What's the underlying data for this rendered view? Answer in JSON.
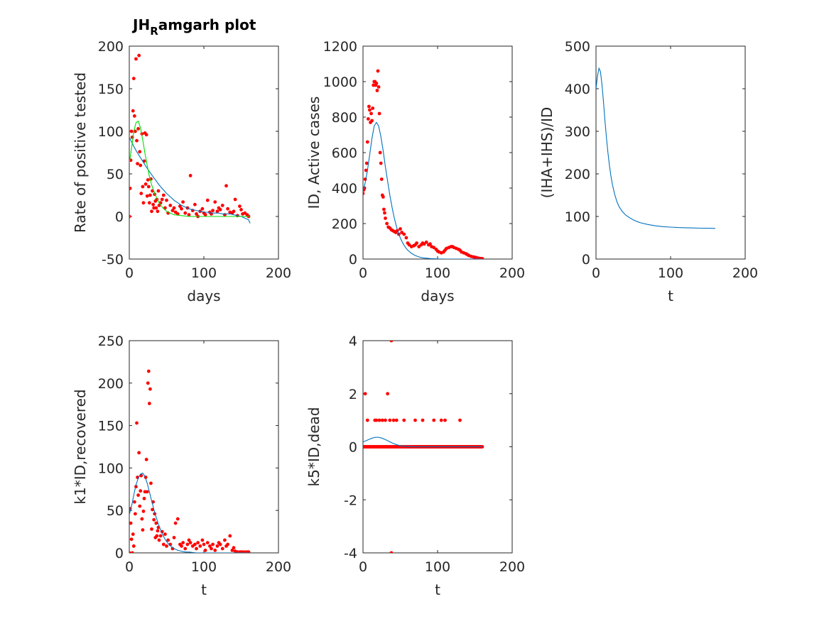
{
  "figure": {
    "title_main": "JH",
    "title_sub": "R",
    "title_rest": "amgarh plot"
  },
  "colors": {
    "fit": "#0072BD",
    "fit2": "#00E000",
    "data": "#FF0000",
    "axes": "#262626"
  },
  "chart_data": [
    {
      "type": "scatter",
      "xlabel": "days",
      "ylabel": "Rate of positive tested",
      "xlim": [
        0,
        200
      ],
      "ylim": [
        -50,
        200
      ],
      "xticks": [
        0,
        100,
        200
      ],
      "yticks": [
        -50,
        0,
        50,
        100,
        150,
        200
      ],
      "series": [
        {
          "kind": "points",
          "x": [
            0,
            1,
            2,
            3,
            4,
            5,
            6,
            7,
            8,
            9,
            10,
            11,
            12,
            13,
            14,
            15,
            16,
            17,
            18,
            19,
            20,
            21,
            22,
            23,
            24,
            25,
            26,
            27,
            28,
            29,
            30,
            31,
            32,
            33,
            34,
            35,
            36,
            37,
            38,
            39,
            40,
            42,
            44,
            46,
            48,
            50,
            52,
            55,
            58,
            60,
            62,
            65,
            68,
            70,
            72,
            75,
            78,
            80,
            82,
            85,
            88,
            90,
            92,
            95,
            98,
            100,
            102,
            105,
            108,
            110,
            112,
            115,
            118,
            120,
            122,
            125,
            128,
            130,
            132,
            135,
            138,
            140,
            142,
            145,
            148,
            150,
            152,
            155,
            158,
            160
          ],
          "y": [
            0,
            33,
            66,
            100,
            93,
            124,
            162,
            118,
            100,
            185,
            89,
            62,
            103,
            189,
            76,
            60,
            27,
            97,
            35,
            16,
            65,
            98,
            38,
            96,
            24,
            43,
            35,
            16,
            25,
            44,
            6,
            30,
            14,
            10,
            26,
            18,
            10,
            20,
            6,
            30,
            13,
            16,
            20,
            25,
            10,
            19,
            4,
            13,
            7,
            10,
            5,
            3,
            12,
            9,
            17,
            4,
            10,
            2,
            48,
            7,
            14,
            3,
            0,
            6,
            9,
            4,
            2,
            19,
            5,
            3,
            7,
            17,
            6,
            10,
            8,
            13,
            2,
            36,
            9,
            5,
            4,
            6,
            20,
            1,
            12,
            8,
            3,
            4,
            2,
            0
          ]
        },
        {
          "kind": "line",
          "color": "fit",
          "x": [
            0,
            5,
            10,
            15,
            20,
            25,
            30,
            35,
            40,
            45,
            50,
            55,
            60,
            65,
            70,
            75,
            80,
            85,
            90,
            95,
            100,
            105,
            110,
            115,
            120,
            125,
            130,
            135,
            140,
            145,
            150,
            155,
            160,
            162
          ],
          "y": [
            93,
            84,
            76,
            69,
            62,
            55,
            49,
            43,
            37,
            32,
            27,
            23,
            19,
            16,
            13,
            11,
            9,
            8,
            7,
            6,
            5,
            5,
            4,
            4,
            4,
            3,
            3,
            3,
            2,
            1,
            0,
            -2,
            -4,
            -8
          ]
        },
        {
          "kind": "line",
          "color": "fit2",
          "x": [
            0,
            3,
            6,
            9,
            12,
            15,
            18,
            21,
            24,
            27,
            30,
            35,
            40,
            45,
            50,
            55,
            60,
            70,
            80,
            90,
            100,
            120,
            140,
            160,
            162
          ],
          "y": [
            63,
            80,
            100,
            110,
            112,
            104,
            90,
            74,
            60,
            47,
            37,
            25,
            16,
            10,
            6,
            4,
            2,
            1,
            0,
            0,
            0,
            0,
            0,
            0,
            0
          ]
        }
      ]
    },
    {
      "type": "scatter",
      "xlabel": "days",
      "ylabel": "ID, Active cases",
      "xlim": [
        0,
        200
      ],
      "ylim": [
        0,
        1200
      ],
      "xticks": [
        0,
        100,
        200
      ],
      "yticks": [
        0,
        200,
        400,
        600,
        800,
        1000,
        1200
      ],
      "series": [
        {
          "kind": "points",
          "x": [
            0,
            1,
            2,
            3,
            4,
            5,
            6,
            7,
            8,
            9,
            10,
            11,
            12,
            13,
            14,
            15,
            16,
            17,
            18,
            19,
            20,
            21,
            22,
            23,
            24,
            25,
            26,
            27,
            28,
            29,
            30,
            32,
            34,
            36,
            38,
            40,
            42,
            44,
            46,
            48,
            50,
            52,
            55,
            58,
            60,
            62,
            65,
            68,
            70,
            72,
            75,
            78,
            80,
            82,
            85,
            88,
            90,
            92,
            95,
            98,
            100,
            102,
            105,
            108,
            110,
            112,
            115,
            118,
            120,
            122,
            125,
            128,
            130,
            132,
            135,
            138,
            140,
            142,
            145,
            148,
            150,
            152,
            155,
            158,
            160
          ],
          "y": [
            370,
            390,
            400,
            450,
            500,
            540,
            660,
            790,
            860,
            840,
            770,
            820,
            780,
            850,
            980,
            1000,
            1000,
            980,
            990,
            950,
            1060,
            970,
            820,
            600,
            540,
            450,
            360,
            350,
            280,
            260,
            230,
            200,
            180,
            175,
            165,
            160,
            155,
            150,
            160,
            140,
            170,
            150,
            140,
            120,
            90,
            80,
            70,
            75,
            80,
            90,
            70,
            80,
            90,
            85,
            95,
            80,
            85,
            70,
            65,
            55,
            45,
            40,
            35,
            40,
            50,
            60,
            65,
            70,
            70,
            65,
            60,
            55,
            50,
            40,
            35,
            30,
            25,
            20,
            15,
            12,
            10,
            8,
            5,
            3,
            2
          ]
        },
        {
          "kind": "line",
          "color": "fit",
          "x": [
            0,
            3,
            6,
            9,
            12,
            15,
            18,
            21,
            24,
            27,
            30,
            33,
            36,
            39,
            42,
            45,
            48,
            51,
            54,
            57,
            60,
            65,
            70,
            75,
            80,
            90,
            100,
            110,
            120,
            130,
            140,
            150,
            160
          ],
          "y": [
            380,
            430,
            500,
            590,
            680,
            750,
            770,
            750,
            690,
            610,
            520,
            440,
            360,
            290,
            230,
            180,
            140,
            110,
            85,
            65,
            50,
            32,
            20,
            12,
            7,
            3,
            1,
            0,
            0,
            0,
            0,
            0,
            0
          ]
        }
      ]
    },
    {
      "type": "line",
      "xlabel": "t",
      "ylabel": "(IHA+IHS)/ID",
      "xlim": [
        0,
        200
      ],
      "ylim": [
        0,
        500
      ],
      "xticks": [
        0,
        100,
        200
      ],
      "yticks": [
        0,
        100,
        200,
        300,
        400,
        500
      ],
      "series": [
        {
          "kind": "line",
          "color": "fit",
          "x": [
            0,
            2,
            4,
            6,
            8,
            10,
            12,
            14,
            16,
            18,
            20,
            22,
            25,
            28,
            31,
            35,
            40,
            45,
            50,
            55,
            60,
            70,
            80,
            90,
            100,
            110,
            120,
            130,
            140,
            150,
            160
          ],
          "y": [
            400,
            430,
            448,
            440,
            410,
            370,
            325,
            285,
            250,
            220,
            195,
            175,
            152,
            135,
            123,
            112,
            103,
            97,
            92,
            88,
            85,
            81,
            78,
            76,
            75,
            74,
            73.5,
            73,
            72.5,
            72.3,
            72
          ]
        }
      ]
    },
    {
      "type": "scatter",
      "xlabel": "t",
      "ylabel": "k1*ID,recovered",
      "xlim": [
        0,
        200
      ],
      "ylim": [
        0,
        250
      ],
      "xticks": [
        0,
        100,
        200
      ],
      "yticks": [
        0,
        50,
        100,
        150,
        200,
        250
      ],
      "series": [
        {
          "kind": "points",
          "x": [
            0,
            1,
            2,
            3,
            4,
            5,
            6,
            7,
            8,
            9,
            10,
            11,
            12,
            13,
            14,
            15,
            16,
            17,
            18,
            19,
            20,
            21,
            22,
            23,
            24,
            25,
            26,
            27,
            28,
            29,
            30,
            31,
            32,
            33,
            34,
            35,
            36,
            37,
            38,
            39,
            40,
            42,
            44,
            46,
            48,
            50,
            52,
            55,
            58,
            60,
            62,
            65,
            68,
            70,
            72,
            75,
            78,
            80,
            82,
            85,
            88,
            90,
            92,
            95,
            98,
            100,
            102,
            105,
            108,
            110,
            112,
            115,
            118,
            120,
            122,
            125,
            128,
            130,
            132,
            135,
            138,
            140,
            142,
            145,
            148,
            150,
            152,
            155,
            158,
            160
          ],
          "y": [
            0,
            52,
            35,
            16,
            0,
            22,
            8,
            60,
            46,
            78,
            153,
            89,
            68,
            118,
            55,
            73,
            91,
            40,
            27,
            49,
            64,
            72,
            89,
            110,
            72,
            200,
            214,
            176,
            193,
            82,
            28,
            51,
            60,
            39,
            46,
            18,
            35,
            20,
            26,
            30,
            15,
            20,
            25,
            10,
            22,
            8,
            15,
            10,
            5,
            18,
            35,
            40,
            10,
            8,
            12,
            5,
            10,
            15,
            12,
            8,
            10,
            5,
            12,
            8,
            15,
            10,
            3,
            12,
            8,
            5,
            10,
            3,
            8,
            12,
            10,
            5,
            15,
            8,
            10,
            20,
            3,
            6,
            2,
            1,
            1,
            1,
            1,
            1,
            1,
            1
          ]
        },
        {
          "kind": "line",
          "color": "fit",
          "x": [
            0,
            3,
            6,
            9,
            12,
            15,
            18,
            21,
            24,
            27,
            30,
            33,
            36,
            39,
            42,
            45,
            48,
            51,
            54,
            57,
            60,
            65,
            70,
            75,
            80,
            90,
            100,
            110,
            120,
            130,
            140,
            150,
            160
          ],
          "y": [
            45,
            55,
            68,
            80,
            88,
            93,
            94,
            90,
            82,
            72,
            61,
            51,
            42,
            34,
            27,
            21,
            16,
            12,
            9,
            7,
            5,
            3,
            2,
            1,
            1,
            0,
            0,
            0,
            0,
            0,
            0,
            0,
            0
          ]
        }
      ]
    },
    {
      "type": "scatter",
      "xlabel": "t",
      "ylabel": "k5*ID,dead",
      "xlim": [
        0,
        200
      ],
      "ylim": [
        -4,
        4
      ],
      "xticks": [
        0,
        100,
        200
      ],
      "yticks": [
        -4,
        -2,
        0,
        2,
        4
      ],
      "series": [
        {
          "kind": "points_dense_zero",
          "x_from": 0,
          "x_to": 160,
          "y": 0
        },
        {
          "kind": "points",
          "x": [
            3,
            6,
            16,
            18,
            22,
            26,
            30,
            33,
            36,
            38,
            41,
            45,
            55,
            70,
            80,
            95,
            105,
            110,
            130,
            38
          ],
          "y": [
            2,
            1,
            1,
            1,
            1,
            1,
            1,
            2,
            1,
            4,
            1,
            1,
            1,
            1,
            1,
            1,
            1,
            1,
            1,
            -4
          ]
        },
        {
          "kind": "line",
          "color": "fit",
          "x": [
            0,
            5,
            10,
            15,
            20,
            25,
            30,
            35,
            40,
            45,
            50,
            55,
            60,
            70,
            80,
            100,
            120,
            140,
            160
          ],
          "y": [
            0.18,
            0.24,
            0.3,
            0.35,
            0.36,
            0.33,
            0.27,
            0.2,
            0.13,
            0.08,
            0.04,
            0.02,
            0.01,
            0,
            0,
            0,
            0,
            0,
            0
          ]
        }
      ]
    }
  ]
}
